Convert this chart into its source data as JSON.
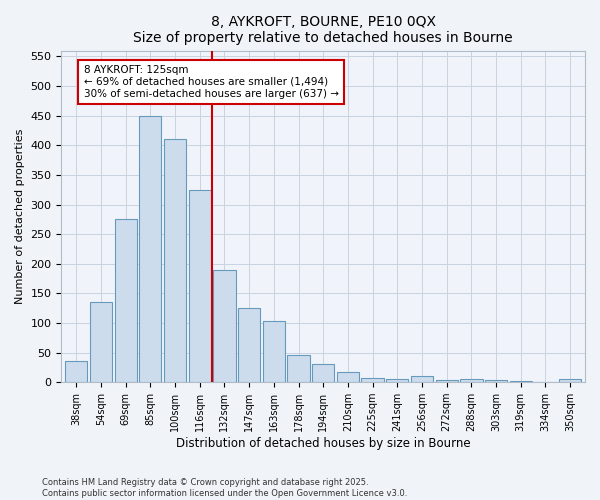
{
  "title1": "8, AYKROFT, BOURNE, PE10 0QX",
  "title2": "Size of property relative to detached houses in Bourne",
  "xlabel": "Distribution of detached houses by size in Bourne",
  "ylabel": "Number of detached properties",
  "categories": [
    "38sqm",
    "54sqm",
    "69sqm",
    "85sqm",
    "100sqm",
    "116sqm",
    "132sqm",
    "147sqm",
    "163sqm",
    "178sqm",
    "194sqm",
    "210sqm",
    "225sqm",
    "241sqm",
    "256sqm",
    "272sqm",
    "288sqm",
    "303sqm",
    "319sqm",
    "334sqm",
    "350sqm"
  ],
  "values": [
    35,
    136,
    275,
    450,
    410,
    325,
    190,
    125,
    103,
    46,
    30,
    18,
    7,
    5,
    10,
    4,
    5,
    3,
    2,
    1,
    6
  ],
  "bar_color": "#ccdcec",
  "bar_edge_color": "#6699bb",
  "grid_color": "#c8d4e0",
  "vline_x_index": 5.5,
  "vline_color": "#cc0000",
  "annotation_line1": "8 AYKROFT: 125sqm",
  "annotation_line2": "← 69% of detached houses are smaller (1,494)",
  "annotation_line3": "30% of semi-detached houses are larger (637) →",
  "ylim": [
    0,
    560
  ],
  "yticks": [
    0,
    50,
    100,
    150,
    200,
    250,
    300,
    350,
    400,
    450,
    500,
    550
  ],
  "footer": "Contains HM Land Registry data © Crown copyright and database right 2025.\nContains public sector information licensed under the Open Government Licence v3.0.",
  "bg_color": "#f0f4f8",
  "plot_bg_color": "#f0f4fa"
}
